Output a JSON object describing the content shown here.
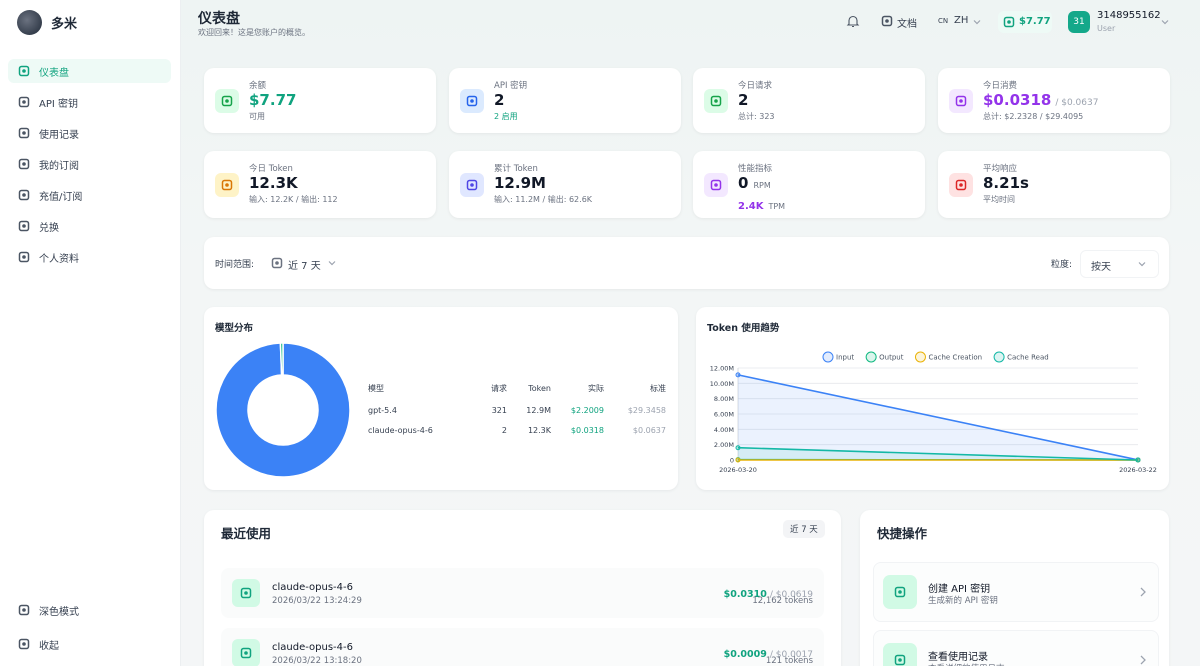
{
  "sidebar": {
    "brand": "多米",
    "nav": [
      "仪表盘",
      "API 密钥",
      "使用记录",
      "我的订阅",
      "充值/订阅",
      "兑换",
      "个人资料"
    ],
    "footer": [
      "深色模式",
      "收起"
    ]
  },
  "header": {
    "title": "仪表盘",
    "subtitle": "欢迎回来！这是您账户的概览。",
    "docs": "文档",
    "lang_flag": "CN",
    "lang": "ZH",
    "balance": "$7.77",
    "avatar": "31",
    "user": "3148955162",
    "role": "User"
  },
  "stats": [
    {
      "label": "余额",
      "value": "$7.77",
      "sub": "可用"
    },
    {
      "label": "API 密钥",
      "value": "2",
      "sub": "2 启用"
    },
    {
      "label": "今日请求",
      "value": "2",
      "sub": "总计: 323"
    },
    {
      "label": "今日消费",
      "value": "$0.0318",
      "extra": "/ $0.0637",
      "sub": "总计: $2.2328 / $29.4095"
    },
    {
      "label": "今日 Token",
      "value": "12.3K",
      "sub": "输入: 12.2K / 输出: 112"
    },
    {
      "label": "累计 Token",
      "value": "12.9M",
      "sub": "输入: 11.2M / 输出: 62.6K"
    },
    {
      "label": "性能指标",
      "value": "0",
      "unit": "RPM",
      "value2": "2.4K",
      "unit2": "TPM"
    },
    {
      "label": "平均响应",
      "value": "8.21s",
      "sub": "平均时间"
    }
  ],
  "filters": {
    "range_label": "时间范围:",
    "range": "近 7 天",
    "granularity_label": "粒度:",
    "granularity": "按天"
  },
  "model_table": {
    "header": [
      "模型",
      "请求",
      "Token",
      "实际",
      "标准"
    ],
    "rows": [
      [
        "gpt-5.4",
        "321",
        "12.9M",
        "$2.2009",
        "$29.3458"
      ],
      [
        "claude-opus-4-6",
        "2",
        "12.3K",
        "$0.0318",
        "$0.0637"
      ]
    ]
  },
  "chart_data": [
    {
      "type": "pie",
      "title": "模型分布",
      "categories": [
        "gpt-5.4",
        "claude-opus-4-6"
      ],
      "values": [
        321,
        2
      ],
      "colors": [
        "#3b82f6",
        "#10b981"
      ]
    },
    {
      "type": "line",
      "title": "Token 使用趋势",
      "x": [
        "2026-03-20",
        "2026-03-22"
      ],
      "series": [
        {
          "name": "Input",
          "color": "#3b82f6",
          "values": [
            11100000,
            12200
          ]
        },
        {
          "name": "Output",
          "color": "#10b981",
          "values": [
            50000,
            112
          ]
        },
        {
          "name": "Cache Creation",
          "color": "#eab308",
          "values": [
            0,
            0
          ]
        },
        {
          "name": "Cache Read",
          "color": "#14b8a6",
          "values": [
            1600000,
            0
          ]
        }
      ],
      "ylim": [
        0,
        12000000
      ],
      "yticks": [
        0,
        {
          "value": 2000000,
          "label": "2.00M"
        },
        {
          "value": 4000000,
          "label": "4.00M"
        },
        {
          "value": 6000000,
          "label": "6.00M"
        },
        {
          "value": 8000000,
          "label": "8.00M"
        },
        {
          "value": 10000000,
          "label": "10.00M"
        },
        {
          "value": 12000000,
          "label": "12.00M"
        }
      ],
      "grid": true,
      "legend": "top"
    }
  ],
  "recent": {
    "title": "最近使用",
    "badge": "近 7 天",
    "items": [
      {
        "model": "claude-opus-4-6",
        "time": "2026/03/22 13:24:29",
        "cost": "$0.0310",
        "standard": "/ $0.0619",
        "tokens": "12,162 tokens"
      },
      {
        "model": "claude-opus-4-6",
        "time": "2026/03/22 13:18:20",
        "cost": "$0.0009",
        "standard": "/ $0.0017",
        "tokens": "121 tokens"
      }
    ]
  },
  "quick_actions": {
    "title": "快捷操作",
    "items": [
      {
        "title": "创建 API 密钥",
        "desc": "生成新的 API 密钥"
      },
      {
        "title": "查看使用记录",
        "desc": "查看详细的使用日志"
      }
    ]
  }
}
